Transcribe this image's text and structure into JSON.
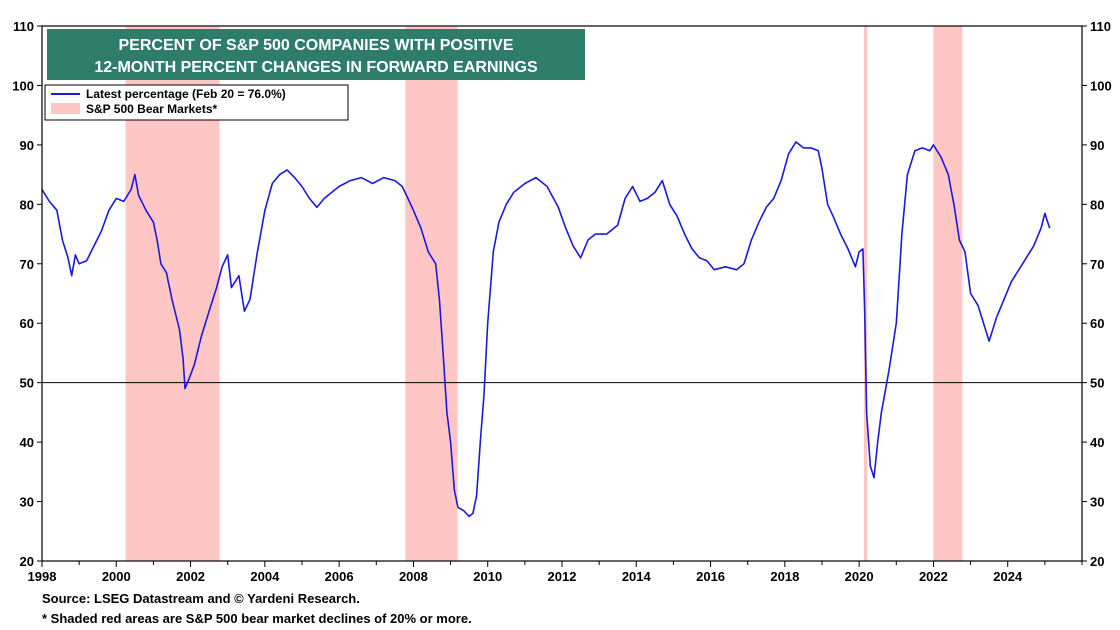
{
  "chart_data": {
    "type": "line",
    "title_lines": [
      "PERCENT OF S&P 500 COMPANIES WITH POSITIVE",
      "12-MONTH PERCENT CHANGES IN FORWARD EARNINGS"
    ],
    "title_bg": "#2e7d6b",
    "xlim": [
      1998,
      2026
    ],
    "ylim": [
      20,
      110
    ],
    "y_ticks": [
      20,
      30,
      40,
      50,
      60,
      70,
      80,
      90,
      100,
      110
    ],
    "x_ticks": [
      1998,
      2000,
      2002,
      2004,
      2006,
      2008,
      2010,
      2012,
      2014,
      2016,
      2018,
      2020,
      2022,
      2024
    ],
    "x_tick_labels": [
      "1998",
      "2000",
      "2002",
      "2004",
      "2006",
      "2008",
      "2010",
      "2012",
      "2014",
      "2016",
      "2018",
      "2020",
      "2022",
      "2024"
    ],
    "reference_line": 50,
    "legend": {
      "line_label": "Latest percentage (Feb 20 = 76.0%)",
      "band_label": "S&P 500 Bear Markets*"
    },
    "colors": {
      "line": "#1a1adc",
      "band": "#ffc6c6",
      "reference": "#000000"
    },
    "bear_markets": [
      {
        "start": 2000.25,
        "end": 2002.78
      },
      {
        "start": 2007.78,
        "end": 2009.19
      },
      {
        "start": 2020.13,
        "end": 2020.22
      },
      {
        "start": 2022.0,
        "end": 2022.78
      }
    ],
    "series": [
      {
        "values": [
          [
            1998.0,
            82.5
          ],
          [
            1998.2,
            80.5
          ],
          [
            1998.4,
            79.0
          ],
          [
            1998.55,
            74.0
          ],
          [
            1998.7,
            71.0
          ],
          [
            1998.8,
            68.0
          ],
          [
            1998.9,
            71.5
          ],
          [
            1999.0,
            70.0
          ],
          [
            1999.2,
            70.5
          ],
          [
            1999.4,
            73.0
          ],
          [
            1999.6,
            75.5
          ],
          [
            1999.8,
            79.0
          ],
          [
            2000.0,
            81.0
          ],
          [
            2000.2,
            80.5
          ],
          [
            2000.4,
            82.5
          ],
          [
            2000.5,
            85.0
          ],
          [
            2000.6,
            81.5
          ],
          [
            2000.8,
            79.0
          ],
          [
            2001.0,
            77.0
          ],
          [
            2001.1,
            74.0
          ],
          [
            2001.2,
            70.0
          ],
          [
            2001.35,
            68.5
          ],
          [
            2001.5,
            64.0
          ],
          [
            2001.7,
            59.0
          ],
          [
            2001.8,
            54.0
          ],
          [
            2001.85,
            49.0
          ],
          [
            2001.95,
            50.5
          ],
          [
            2002.1,
            53.0
          ],
          [
            2002.3,
            58.0
          ],
          [
            2002.5,
            62.0
          ],
          [
            2002.7,
            66.0
          ],
          [
            2002.85,
            69.5
          ],
          [
            2003.0,
            71.5
          ],
          [
            2003.1,
            66.0
          ],
          [
            2003.3,
            68.0
          ],
          [
            2003.45,
            62.0
          ],
          [
            2003.6,
            64.0
          ],
          [
            2003.8,
            72.0
          ],
          [
            2004.0,
            79.0
          ],
          [
            2004.2,
            83.5
          ],
          [
            2004.4,
            85.0
          ],
          [
            2004.6,
            85.8
          ],
          [
            2004.8,
            84.5
          ],
          [
            2005.0,
            83.0
          ],
          [
            2005.2,
            81.0
          ],
          [
            2005.4,
            79.5
          ],
          [
            2005.6,
            81.0
          ],
          [
            2005.8,
            82.0
          ],
          [
            2006.0,
            83.0
          ],
          [
            2006.3,
            84.0
          ],
          [
            2006.6,
            84.5
          ],
          [
            2006.9,
            83.5
          ],
          [
            2007.2,
            84.5
          ],
          [
            2007.5,
            84.0
          ],
          [
            2007.7,
            83.0
          ],
          [
            2007.85,
            81.0
          ],
          [
            2008.0,
            79.0
          ],
          [
            2008.2,
            76.0
          ],
          [
            2008.4,
            72.0
          ],
          [
            2008.6,
            70.0
          ],
          [
            2008.7,
            64.0
          ],
          [
            2008.8,
            55.0
          ],
          [
            2008.9,
            45.0
          ],
          [
            2009.0,
            40.0
          ],
          [
            2009.1,
            32.0
          ],
          [
            2009.2,
            29.0
          ],
          [
            2009.35,
            28.5
          ],
          [
            2009.5,
            27.5
          ],
          [
            2009.6,
            28.0
          ],
          [
            2009.7,
            31.0
          ],
          [
            2009.8,
            40.0
          ],
          [
            2009.9,
            48.0
          ],
          [
            2010.0,
            60.0
          ],
          [
            2010.15,
            72.0
          ],
          [
            2010.3,
            77.0
          ],
          [
            2010.5,
            80.0
          ],
          [
            2010.7,
            82.0
          ],
          [
            2011.0,
            83.5
          ],
          [
            2011.3,
            84.5
          ],
          [
            2011.6,
            83.0
          ],
          [
            2011.9,
            79.5
          ],
          [
            2012.1,
            76.0
          ],
          [
            2012.3,
            73.0
          ],
          [
            2012.5,
            71.0
          ],
          [
            2012.7,
            74.0
          ],
          [
            2012.9,
            75.0
          ],
          [
            2013.2,
            75.0
          ],
          [
            2013.5,
            76.5
          ],
          [
            2013.7,
            81.0
          ],
          [
            2013.9,
            83.0
          ],
          [
            2014.1,
            80.5
          ],
          [
            2014.3,
            81.0
          ],
          [
            2014.5,
            82.0
          ],
          [
            2014.7,
            84.0
          ],
          [
            2014.9,
            80.0
          ],
          [
            2015.1,
            78.0
          ],
          [
            2015.3,
            75.0
          ],
          [
            2015.5,
            72.5
          ],
          [
            2015.7,
            71.0
          ],
          [
            2015.9,
            70.5
          ],
          [
            2016.1,
            69.0
          ],
          [
            2016.4,
            69.5
          ],
          [
            2016.7,
            69.0
          ],
          [
            2016.9,
            70.0
          ],
          [
            2017.1,
            74.0
          ],
          [
            2017.3,
            77.0
          ],
          [
            2017.5,
            79.5
          ],
          [
            2017.7,
            81.0
          ],
          [
            2017.9,
            84.0
          ],
          [
            2018.1,
            88.5
          ],
          [
            2018.3,
            90.5
          ],
          [
            2018.5,
            89.5
          ],
          [
            2018.7,
            89.5
          ],
          [
            2018.9,
            89.0
          ],
          [
            2019.0,
            86.0
          ],
          [
            2019.15,
            80.0
          ],
          [
            2019.3,
            78.0
          ],
          [
            2019.5,
            75.0
          ],
          [
            2019.7,
            72.5
          ],
          [
            2019.9,
            69.5
          ],
          [
            2020.0,
            72.0
          ],
          [
            2020.1,
            72.5
          ],
          [
            2020.15,
            62.0
          ],
          [
            2020.2,
            45.0
          ],
          [
            2020.3,
            36.0
          ],
          [
            2020.4,
            34.0
          ],
          [
            2020.5,
            40.0
          ],
          [
            2020.6,
            45.0
          ],
          [
            2020.8,
            52.0
          ],
          [
            2021.0,
            60.0
          ],
          [
            2021.15,
            75.0
          ],
          [
            2021.3,
            85.0
          ],
          [
            2021.5,
            89.0
          ],
          [
            2021.7,
            89.5
          ],
          [
            2021.9,
            89.0
          ],
          [
            2022.0,
            90.0
          ],
          [
            2022.2,
            88.0
          ],
          [
            2022.4,
            85.0
          ],
          [
            2022.55,
            80.0
          ],
          [
            2022.7,
            74.0
          ],
          [
            2022.85,
            72.0
          ],
          [
            2023.0,
            65.0
          ],
          [
            2023.2,
            63.0
          ],
          [
            2023.4,
            59.0
          ],
          [
            2023.5,
            57.0
          ],
          [
            2023.7,
            61.0
          ],
          [
            2023.9,
            64.0
          ],
          [
            2024.1,
            67.0
          ],
          [
            2024.3,
            69.0
          ],
          [
            2024.5,
            71.0
          ],
          [
            2024.7,
            73.0
          ],
          [
            2024.9,
            76.0
          ],
          [
            2025.0,
            78.5
          ],
          [
            2025.05,
            77.5
          ],
          [
            2025.13,
            76.0
          ]
        ]
      }
    ]
  },
  "footer": {
    "source": "Source: LSEG Datastream and © Yardeni Research.",
    "note": "* Shaded red areas are S&P 500 bear market declines of 20% or more."
  }
}
